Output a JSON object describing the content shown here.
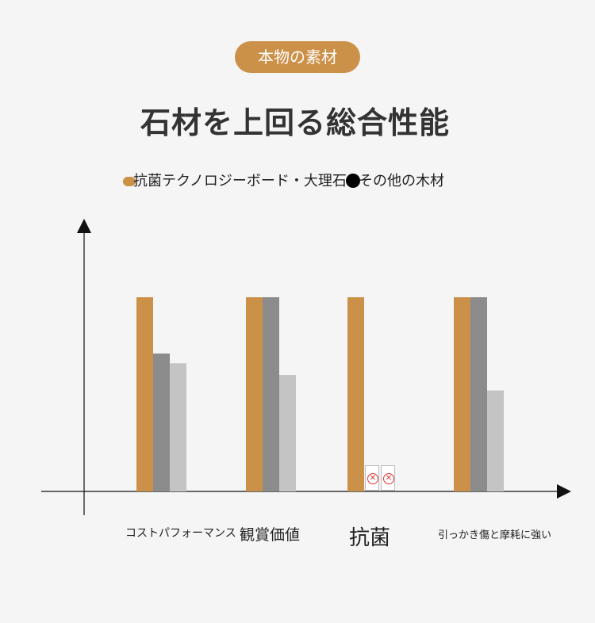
{
  "header": {
    "pill_label": "本物の素材",
    "title": "石材を上回る総合性能"
  },
  "legend": {
    "items": [
      {
        "name": "抗菌テクノロジーボード・大理石",
        "color": "#cc9149"
      },
      {
        "name": "その他の木材",
        "color": "#000000"
      }
    ]
  },
  "chart_data": {
    "type": "bar",
    "categories": [
      "コストパフォーマンス",
      "観賞価値",
      "抗菌",
      "引っかき傷と摩耗に強い"
    ],
    "series": [
      {
        "name": "抗菌テクノロジーボード・大理石",
        "color": "#cc9149",
        "values": [
          100,
          100,
          100,
          100
        ]
      },
      {
        "color": "#8c8c8c",
        "values": [
          71,
          100,
          null,
          100
        ]
      },
      {
        "color": "#c4c4c4",
        "values": [
          66,
          60,
          null,
          52
        ]
      }
    ],
    "missing_marker": "close-circle-icon",
    "ylim": [
      0,
      100
    ],
    "grid": false,
    "legend_position": "top"
  }
}
